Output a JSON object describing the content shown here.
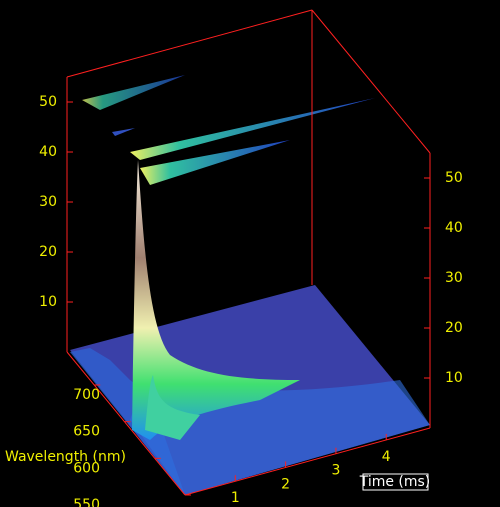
{
  "chart_data": {
    "type": "surface3d",
    "xlabel": "Time (ms)",
    "ylabel": "Wavelength (nm)",
    "xlim": [
      0,
      4.87
    ],
    "xticks": [
      1,
      2,
      3,
      4
    ],
    "ylim": [
      550,
      745
    ],
    "yticks": [
      550,
      600,
      650,
      700
    ],
    "zlim": [
      0,
      55
    ],
    "zticks": [
      10,
      20,
      30,
      40,
      50
    ],
    "box_color": "#ff2020",
    "tick_color": "#f0f000"
  }
}
